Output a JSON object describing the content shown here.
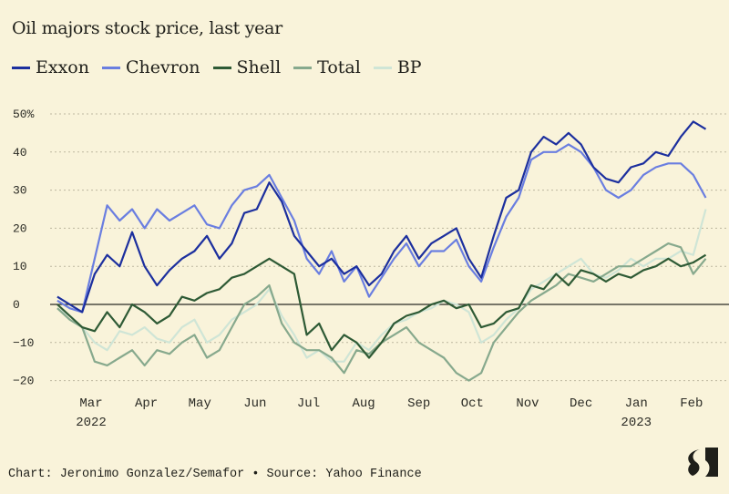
{
  "chart_data": {
    "type": "line",
    "title": "Oil majors stock price, last year",
    "ylabel": "",
    "xlabel": "",
    "ylim": [
      -20,
      50
    ],
    "y_unit": "%",
    "yticks": [
      {
        "v": 50,
        "label": "50%"
      },
      {
        "v": 40,
        "label": "40"
      },
      {
        "v": 30,
        "label": "30"
      },
      {
        "v": 20,
        "label": "20"
      },
      {
        "v": 10,
        "label": "10"
      },
      {
        "v": 0,
        "label": "0"
      },
      {
        "v": -10,
        "label": "−10"
      },
      {
        "v": -20,
        "label": "−20"
      }
    ],
    "xticks": [
      {
        "date": "2022-03-01",
        "label": "Mar",
        "sub": "2022"
      },
      {
        "date": "2022-04-01",
        "label": "Apr"
      },
      {
        "date": "2022-05-01",
        "label": "May"
      },
      {
        "date": "2022-06-01",
        "label": "Jun"
      },
      {
        "date": "2022-07-01",
        "label": "Jul"
      },
      {
        "date": "2022-08-01",
        "label": "Aug"
      },
      {
        "date": "2022-09-01",
        "label": "Sep"
      },
      {
        "date": "2022-10-01",
        "label": "Oct"
      },
      {
        "date": "2022-11-01",
        "label": "Nov"
      },
      {
        "date": "2022-12-01",
        "label": "Dec"
      },
      {
        "date": "2023-01-01",
        "label": "Jan",
        "sub": "2023"
      },
      {
        "date": "2023-02-01",
        "label": "Feb"
      }
    ],
    "grid": "horizontal dotted",
    "legend_placement": "top-left",
    "x": [
      "2022-02-10",
      "2022-02-17",
      "2022-02-24",
      "2022-03-03",
      "2022-03-10",
      "2022-03-17",
      "2022-03-24",
      "2022-03-31",
      "2022-04-07",
      "2022-04-14",
      "2022-04-21",
      "2022-04-28",
      "2022-05-05",
      "2022-05-12",
      "2022-05-19",
      "2022-05-26",
      "2022-06-02",
      "2022-06-09",
      "2022-06-16",
      "2022-06-23",
      "2022-06-30",
      "2022-07-07",
      "2022-07-14",
      "2022-07-21",
      "2022-07-28",
      "2022-08-04",
      "2022-08-11",
      "2022-08-18",
      "2022-08-25",
      "2022-09-01",
      "2022-09-08",
      "2022-09-15",
      "2022-09-22",
      "2022-09-29",
      "2022-10-06",
      "2022-10-13",
      "2022-10-20",
      "2022-10-27",
      "2022-11-03",
      "2022-11-10",
      "2022-11-17",
      "2022-11-24",
      "2022-12-01",
      "2022-12-08",
      "2022-12-15",
      "2022-12-22",
      "2022-12-29",
      "2023-01-05",
      "2023-01-12",
      "2023-01-19",
      "2023-01-26",
      "2023-02-02",
      "2023-02-09"
    ],
    "series": [
      {
        "name": "Exxon",
        "color": "#1c2f9e",
        "values": [
          2,
          0,
          -2,
          8,
          13,
          10,
          19,
          10,
          5,
          9,
          12,
          14,
          18,
          12,
          16,
          24,
          25,
          32,
          27,
          18,
          14,
          10,
          12,
          8,
          10,
          5,
          8,
          14,
          18,
          12,
          16,
          18,
          20,
          12,
          7,
          18,
          28,
          30,
          40,
          44,
          42,
          45,
          42,
          36,
          33,
          32,
          36,
          37,
          40,
          39,
          44,
          48,
          46
        ]
      },
      {
        "name": "Chevron",
        "color": "#6a7ee0",
        "values": [
          1,
          -1,
          -2,
          12,
          26,
          22,
          25,
          20,
          25,
          22,
          24,
          26,
          21,
          20,
          26,
          30,
          31,
          34,
          28,
          22,
          12,
          8,
          14,
          6,
          10,
          2,
          7,
          12,
          16,
          10,
          14,
          14,
          17,
          10,
          6,
          15,
          23,
          28,
          38,
          40,
          40,
          42,
          40,
          36,
          30,
          28,
          30,
          34,
          36,
          37,
          37,
          34,
          28
        ]
      },
      {
        "name": "Shell",
        "color": "#2e5a35",
        "values": [
          0,
          -3,
          -6,
          -7,
          -2,
          -6,
          0,
          -2,
          -5,
          -3,
          2,
          1,
          3,
          4,
          7,
          8,
          10,
          12,
          10,
          8,
          -8,
          -5,
          -12,
          -8,
          -10,
          -14,
          -10,
          -5,
          -3,
          -2,
          0,
          1,
          -1,
          0,
          -6,
          -5,
          -2,
          -1,
          5,
          4,
          8,
          5,
          9,
          8,
          6,
          8,
          7,
          9,
          10,
          12,
          10,
          11,
          13
        ]
      },
      {
        "name": "Total",
        "color": "#87a98d",
        "values": [
          -1,
          -4,
          -6,
          -15,
          -16,
          -14,
          -12,
          -16,
          -12,
          -13,
          -10,
          -8,
          -14,
          -12,
          -6,
          0,
          2,
          5,
          -5,
          -10,
          -12,
          -12,
          -14,
          -18,
          -12,
          -13,
          -10,
          -8,
          -6,
          -10,
          -12,
          -14,
          -18,
          -20,
          -18,
          -10,
          -6,
          -2,
          1,
          3,
          5,
          8,
          7,
          6,
          8,
          10,
          10,
          12,
          14,
          16,
          15,
          8,
          12
        ]
      },
      {
        "name": "BP",
        "color": "#cfe5d6",
        "values": [
          -1,
          -3,
          -6,
          -10,
          -12,
          -7,
          -8,
          -6,
          -9,
          -10,
          -6,
          -4,
          -10,
          -8,
          -4,
          -2,
          0,
          4,
          -3,
          -8,
          -14,
          -12,
          -15,
          -15,
          -10,
          -12,
          -8,
          -5,
          -4,
          -2,
          -1,
          1,
          0,
          -2,
          -10,
          -8,
          -4,
          -1,
          4,
          6,
          8,
          10,
          12,
          8,
          7,
          9,
          12,
          10,
          12,
          12,
          14,
          13,
          25
        ]
      }
    ]
  },
  "footer": {
    "credit": "Chart: Jeronimo Gonzalez/Semafor • Source: Yahoo Finance"
  },
  "logo": {
    "name": "semafor-logo",
    "text": "S"
  }
}
